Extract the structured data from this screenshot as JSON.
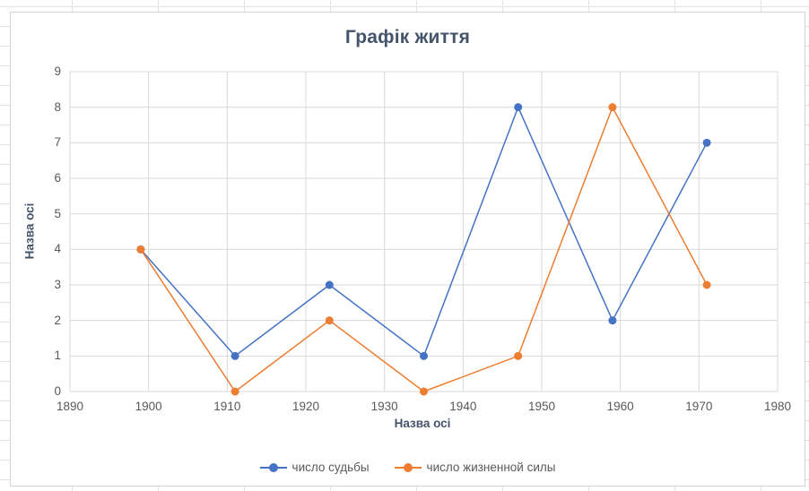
{
  "chart_data": {
    "type": "line",
    "title": "Графік життя",
    "xlabel": "Назва осі",
    "ylabel": "Назва осі",
    "x": [
      1899,
      1911,
      1923,
      1935,
      1947,
      1959,
      1971
    ],
    "series": [
      {
        "name": "число судьбы",
        "color": "#4472c4",
        "values": [
          4,
          1,
          3,
          1,
          8,
          2,
          7
        ]
      },
      {
        "name": "число жизненной силы",
        "color": "#ed7d31",
        "values": [
          4,
          0,
          2,
          0,
          1,
          8,
          3
        ]
      }
    ],
    "xlim": [
      1890,
      1980
    ],
    "ylim": [
      0,
      9
    ],
    "x_ticks": [
      1890,
      1900,
      1910,
      1920,
      1930,
      1940,
      1950,
      1960,
      1970,
      1980
    ],
    "y_ticks": [
      0,
      1,
      2,
      3,
      4,
      5,
      6,
      7,
      8,
      9
    ],
    "grid": true,
    "legend_position": "bottom"
  },
  "colors": {
    "title_text": "#44546a",
    "axis_text": "#595959",
    "gridline": "#d9d9d9",
    "plot_border": "#d9d9d9",
    "series_blue": "#4472c4",
    "series_orange": "#ed7d31",
    "card_border": "#d4d4d4",
    "sheet_grid": "#e2e2e2"
  }
}
